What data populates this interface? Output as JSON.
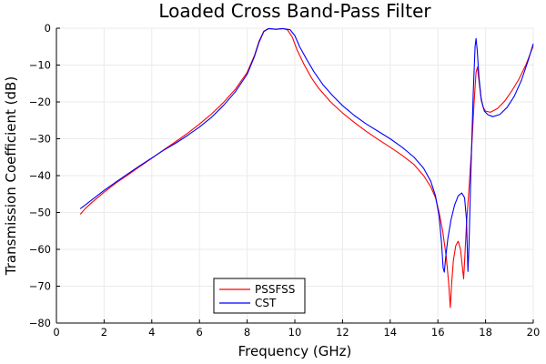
{
  "chart_data": {
    "type": "line",
    "title": "Loaded Cross Band-Pass Filter",
    "xlabel": "Frequency (GHz)",
    "ylabel": "Transmission Coefficient (dB)",
    "xlim": [
      0,
      20
    ],
    "ylim": [
      -80,
      0
    ],
    "xticks": [
      0,
      2,
      4,
      6,
      8,
      10,
      12,
      14,
      16,
      18,
      20
    ],
    "yticks": [
      0,
      -10,
      -20,
      -30,
      -40,
      -50,
      -60,
      -70,
      -80
    ],
    "xtick_labels": [
      "0",
      "2",
      "4",
      "6",
      "8",
      "10",
      "12",
      "14",
      "16",
      "18",
      "20"
    ],
    "ytick_labels": [
      "0",
      "−10",
      "−20",
      "−30",
      "−40",
      "−50",
      "−60",
      "−70",
      "−80"
    ],
    "grid": true,
    "legend_position": "bottom-center",
    "series": [
      {
        "name": "PSSFSS",
        "color": "#ff0000",
        "points": [
          [
            1.0,
            -50.5
          ],
          [
            1.2,
            -49.0
          ],
          [
            1.5,
            -47.2
          ],
          [
            2.0,
            -44.5
          ],
          [
            2.5,
            -42.0
          ],
          [
            3.0,
            -39.8
          ],
          [
            3.5,
            -37.5
          ],
          [
            4.0,
            -35.3
          ],
          [
            4.5,
            -33.0
          ],
          [
            5.0,
            -30.8
          ],
          [
            5.5,
            -28.5
          ],
          [
            6.0,
            -26.0
          ],
          [
            6.5,
            -23.3
          ],
          [
            7.0,
            -20.2
          ],
          [
            7.5,
            -16.6
          ],
          [
            8.0,
            -12.0
          ],
          [
            8.3,
            -7.5
          ],
          [
            8.5,
            -3.5
          ],
          [
            8.7,
            -0.8
          ],
          [
            8.9,
            -0.1
          ],
          [
            9.2,
            -0.3
          ],
          [
            9.5,
            -0.1
          ],
          [
            9.7,
            -0.5
          ],
          [
            9.9,
            -2.5
          ],
          [
            10.1,
            -6.0
          ],
          [
            10.4,
            -10.0
          ],
          [
            10.7,
            -13.5
          ],
          [
            11.0,
            -16.3
          ],
          [
            11.5,
            -20.0
          ],
          [
            12.0,
            -23.0
          ],
          [
            12.5,
            -25.6
          ],
          [
            13.0,
            -28.0
          ],
          [
            13.5,
            -30.2
          ],
          [
            14.0,
            -32.3
          ],
          [
            14.5,
            -34.5
          ],
          [
            15.0,
            -37.0
          ],
          [
            15.4,
            -40.0
          ],
          [
            15.7,
            -43.0
          ],
          [
            15.9,
            -46.0
          ],
          [
            16.05,
            -50.0
          ],
          [
            16.2,
            -55.0
          ],
          [
            16.35,
            -62.0
          ],
          [
            16.45,
            -69.0
          ],
          [
            16.52,
            -75.8
          ],
          [
            16.58,
            -69.0
          ],
          [
            16.65,
            -63.0
          ],
          [
            16.75,
            -59.0
          ],
          [
            16.85,
            -57.8
          ],
          [
            16.95,
            -60.0
          ],
          [
            17.03,
            -65.0
          ],
          [
            17.08,
            -68.0
          ],
          [
            17.13,
            -62.0
          ],
          [
            17.2,
            -53.0
          ],
          [
            17.3,
            -44.0
          ],
          [
            17.42,
            -32.0
          ],
          [
            17.52,
            -20.0
          ],
          [
            17.6,
            -12.0
          ],
          [
            17.66,
            -10.5
          ],
          [
            17.72,
            -14.0
          ],
          [
            17.8,
            -18.5
          ],
          [
            17.9,
            -21.5
          ],
          [
            18.0,
            -22.5
          ],
          [
            18.2,
            -22.8
          ],
          [
            18.5,
            -21.8
          ],
          [
            18.8,
            -19.8
          ],
          [
            19.1,
            -17.0
          ],
          [
            19.4,
            -13.8
          ],
          [
            19.7,
            -9.8
          ],
          [
            20.0,
            -4.8
          ]
        ]
      },
      {
        "name": "CST",
        "color": "#0000ff",
        "points": [
          [
            1.0,
            -49.0
          ],
          [
            1.2,
            -48.0
          ],
          [
            1.5,
            -46.5
          ],
          [
            2.0,
            -44.0
          ],
          [
            2.5,
            -41.7
          ],
          [
            3.0,
            -39.5
          ],
          [
            3.5,
            -37.3
          ],
          [
            4.0,
            -35.2
          ],
          [
            4.5,
            -33.1
          ],
          [
            5.0,
            -31.2
          ],
          [
            5.5,
            -29.1
          ],
          [
            6.0,
            -26.8
          ],
          [
            6.5,
            -24.2
          ],
          [
            7.0,
            -21.0
          ],
          [
            7.5,
            -17.3
          ],
          [
            8.0,
            -12.5
          ],
          [
            8.3,
            -7.8
          ],
          [
            8.5,
            -3.8
          ],
          [
            8.7,
            -0.9
          ],
          [
            8.9,
            -0.1
          ],
          [
            9.2,
            -0.3
          ],
          [
            9.5,
            -0.1
          ],
          [
            9.8,
            -0.4
          ],
          [
            10.0,
            -2.0
          ],
          [
            10.2,
            -5.0
          ],
          [
            10.5,
            -8.5
          ],
          [
            10.8,
            -11.8
          ],
          [
            11.2,
            -15.5
          ],
          [
            11.6,
            -18.4
          ],
          [
            12.0,
            -21.0
          ],
          [
            12.5,
            -23.7
          ],
          [
            13.0,
            -26.0
          ],
          [
            13.5,
            -28.0
          ],
          [
            14.0,
            -30.0
          ],
          [
            14.5,
            -32.3
          ],
          [
            15.0,
            -35.0
          ],
          [
            15.4,
            -38.0
          ],
          [
            15.7,
            -41.5
          ],
          [
            15.9,
            -45.5
          ],
          [
            16.05,
            -51.0
          ],
          [
            16.15,
            -58.0
          ],
          [
            16.22,
            -65.0
          ],
          [
            16.27,
            -66.2
          ],
          [
            16.33,
            -62.0
          ],
          [
            16.42,
            -57.0
          ],
          [
            16.55,
            -52.0
          ],
          [
            16.7,
            -48.0
          ],
          [
            16.85,
            -45.5
          ],
          [
            17.0,
            -44.7
          ],
          [
            17.12,
            -46.0
          ],
          [
            17.2,
            -52.0
          ],
          [
            17.26,
            -66.0
          ],
          [
            17.3,
            -60.0
          ],
          [
            17.38,
            -40.0
          ],
          [
            17.48,
            -18.0
          ],
          [
            17.56,
            -5.0
          ],
          [
            17.6,
            -2.8
          ],
          [
            17.65,
            -6.0
          ],
          [
            17.72,
            -13.0
          ],
          [
            17.82,
            -19.5
          ],
          [
            17.95,
            -22.5
          ],
          [
            18.1,
            -23.5
          ],
          [
            18.3,
            -24.0
          ],
          [
            18.6,
            -23.4
          ],
          [
            18.9,
            -21.5
          ],
          [
            19.2,
            -18.5
          ],
          [
            19.5,
            -14.2
          ],
          [
            19.8,
            -8.5
          ],
          [
            20.0,
            -4.2
          ]
        ]
      }
    ]
  }
}
